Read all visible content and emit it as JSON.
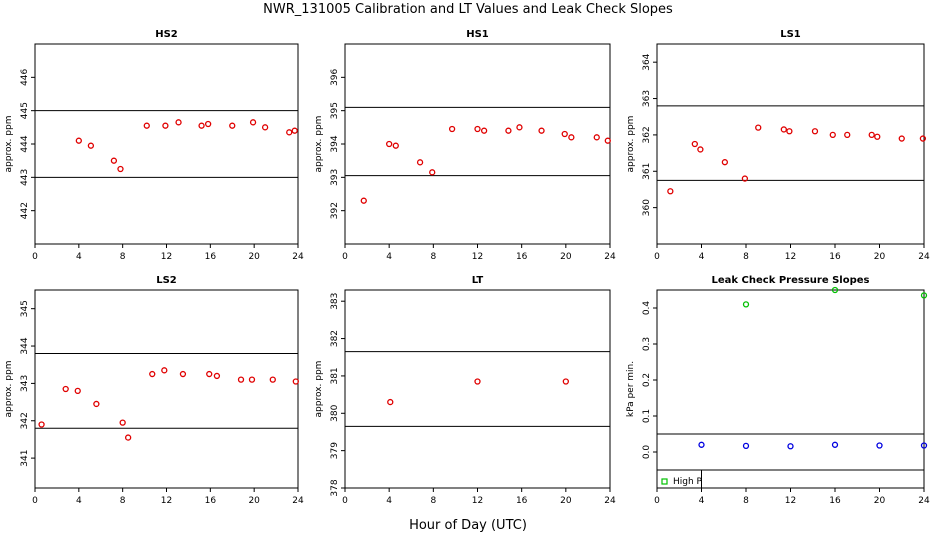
{
  "title": "NWR_131005  Calibration and LT Values and Leak Check Slopes",
  "xaxis_title": "Hour of Day (UTC)",
  "colors": {
    "point": "#e00000",
    "high": "#00c000",
    "low": "#0000e0",
    "axis": "#000000"
  },
  "chart_data": [
    {
      "type": "scatter",
      "title": "HS2",
      "ylabel": "approx. ppm",
      "xlim": [
        0,
        24
      ],
      "ylim": [
        441,
        447
      ],
      "xticks": [
        0,
        4,
        8,
        12,
        16,
        20,
        24
      ],
      "yticks": [
        442,
        443,
        444,
        445,
        446
      ],
      "hlines": [
        443.0,
        445.0
      ],
      "series": [
        {
          "color": "red",
          "x": [
            4.0,
            5.1,
            7.2,
            7.8,
            10.2,
            11.9,
            13.1,
            15.2,
            15.8,
            18.0,
            19.9,
            21.0,
            23.2,
            23.7
          ],
          "y": [
            444.1,
            443.95,
            443.5,
            443.25,
            444.55,
            444.55,
            444.65,
            444.55,
            444.6,
            444.55,
            444.65,
            444.5,
            444.35,
            444.4
          ]
        }
      ]
    },
    {
      "type": "scatter",
      "title": "HS1",
      "ylabel": "approx. ppm",
      "xlim": [
        0,
        24
      ],
      "ylim": [
        391,
        397
      ],
      "xticks": [
        0,
        4,
        8,
        12,
        16,
        20,
        24
      ],
      "yticks": [
        392,
        393,
        394,
        395,
        396
      ],
      "hlines": [
        393.05,
        395.1
      ],
      "series": [
        {
          "color": "red",
          "x": [
            1.7,
            4.0,
            4.6,
            6.8,
            7.9,
            9.7,
            12.0,
            12.6,
            14.8,
            15.8,
            17.8,
            19.9,
            20.5,
            22.8,
            23.8
          ],
          "y": [
            392.3,
            394.0,
            393.95,
            393.45,
            393.15,
            394.45,
            394.45,
            394.4,
            394.4,
            394.5,
            394.4,
            394.3,
            394.2,
            394.2,
            394.1
          ]
        }
      ]
    },
    {
      "type": "scatter",
      "title": "LS1",
      "ylabel": "approx. ppm",
      "xlim": [
        0,
        24
      ],
      "ylim": [
        359,
        364.5
      ],
      "xticks": [
        0,
        4,
        8,
        12,
        16,
        20,
        24
      ],
      "yticks": [
        360,
        361,
        362,
        363,
        364
      ],
      "hlines": [
        360.75,
        362.8
      ],
      "series": [
        {
          "color": "red",
          "x": [
            1.2,
            3.4,
            3.9,
            6.1,
            7.9,
            9.1,
            11.4,
            11.9,
            14.2,
            15.8,
            17.1,
            19.3,
            19.8,
            22.0,
            23.9
          ],
          "y": [
            360.45,
            361.75,
            361.6,
            361.25,
            360.8,
            362.2,
            362.15,
            362.1,
            362.1,
            362.0,
            362.0,
            362.0,
            361.95,
            361.9,
            361.9
          ]
        }
      ]
    },
    {
      "type": "scatter",
      "title": "LS2",
      "ylabel": "approx. ppm",
      "xlim": [
        0,
        24
      ],
      "ylim": [
        340.2,
        345.5
      ],
      "xticks": [
        0,
        4,
        8,
        12,
        16,
        20,
        24
      ],
      "yticks": [
        341,
        342,
        343,
        344,
        345
      ],
      "hlines": [
        341.8,
        343.8
      ],
      "series": [
        {
          "color": "red",
          "x": [
            0.6,
            2.8,
            3.9,
            5.6,
            8.0,
            8.5,
            10.7,
            11.8,
            13.5,
            15.9,
            16.6,
            18.8,
            19.8,
            21.7,
            23.8
          ],
          "y": [
            341.9,
            342.85,
            342.8,
            342.45,
            341.95,
            341.55,
            343.25,
            343.35,
            343.25,
            343.25,
            343.2,
            343.1,
            343.1,
            343.1,
            343.05
          ]
        }
      ]
    },
    {
      "type": "scatter",
      "title": "LT",
      "ylabel": "approx. ppm",
      "xlim": [
        0,
        24
      ],
      "ylim": [
        378,
        383.3
      ],
      "xticks": [
        0,
        4,
        8,
        12,
        16,
        20,
        24
      ],
      "yticks": [
        378,
        379,
        380,
        381,
        382,
        383
      ],
      "hlines": [
        379.65,
        381.65
      ],
      "series": [
        {
          "color": "red",
          "x": [
            4.1,
            12.0,
            20.0
          ],
          "y": [
            380.3,
            380.85,
            380.85
          ]
        }
      ]
    },
    {
      "type": "scatter",
      "title": "Leak Check Pressure Slopes",
      "ylabel": "kPa per min.",
      "xlim": [
        0,
        24
      ],
      "ylim": [
        -0.1,
        0.45
      ],
      "xticks": [
        0,
        4,
        8,
        12,
        16,
        20,
        24
      ],
      "yticks": [
        0.0,
        0.1,
        0.2,
        0.3,
        0.4
      ],
      "hlines": [
        0.05,
        -0.05
      ],
      "legend": {
        "position": "bottom-left",
        "label": "High P"
      },
      "series": [
        {
          "name": "High P",
          "color": "green",
          "x": [
            8,
            16,
            24
          ],
          "y": [
            0.41,
            0.45,
            0.435
          ]
        },
        {
          "color": "blue",
          "x": [
            4,
            8,
            12,
            16,
            20,
            24
          ],
          "y": [
            0.02,
            0.017,
            0.016,
            0.02,
            0.018,
            0.018
          ]
        }
      ]
    }
  ]
}
